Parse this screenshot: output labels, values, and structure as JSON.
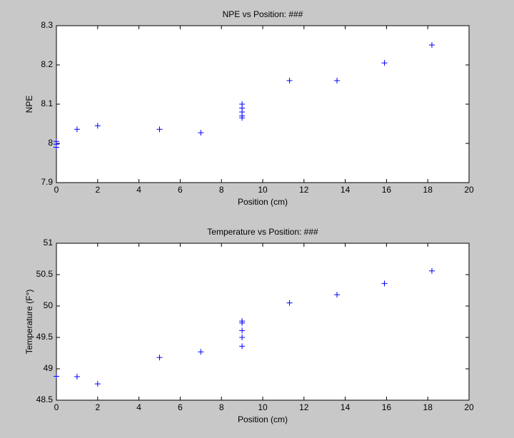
{
  "chart_data": [
    {
      "type": "scatter",
      "title": "NPE vs Position: ###",
      "x_label": "Position (cm)",
      "y_label": "NPE",
      "x": [
        0,
        0,
        0,
        1,
        2,
        5,
        7,
        9,
        9,
        9,
        9,
        9,
        11.3,
        13.6,
        15.9,
        18.2
      ],
      "values": [
        8.005,
        7.998,
        7.99,
        8.036,
        8.045,
        8.036,
        8.027,
        8.1,
        8.09,
        8.08,
        8.07,
        8.065,
        8.16,
        8.16,
        8.205,
        8.251
      ],
      "color": "#0000ff",
      "xlim": [
        0,
        20
      ],
      "xticks": [
        0,
        2,
        4,
        6,
        8,
        10,
        12,
        14,
        16,
        18,
        20
      ],
      "ylim": [
        7.9,
        8.3
      ],
      "yticks": [
        7.9,
        8,
        8.1,
        8.2,
        8.3
      ]
    },
    {
      "type": "scatter",
      "title": "Temperature vs Position: ###",
      "x_label": "Position (cm)",
      "y_label": "Temperature (F°)",
      "x": [
        0,
        1,
        2,
        5,
        7,
        9,
        9,
        9,
        9,
        9,
        11.3,
        13.6,
        15.9,
        18.2
      ],
      "values": [
        48.88,
        48.875,
        48.76,
        49.18,
        49.27,
        49.76,
        49.73,
        49.61,
        49.5,
        49.36,
        50.05,
        50.18,
        50.36,
        50.56
      ],
      "color": "#0000ff",
      "xlim": [
        0,
        20
      ],
      "xticks": [
        0,
        2,
        4,
        6,
        8,
        10,
        12,
        14,
        16,
        18,
        20
      ],
      "ylim": [
        48.5,
        51
      ],
      "yticks": [
        48.5,
        49,
        49.5,
        50,
        50.5,
        51
      ]
    }
  ]
}
